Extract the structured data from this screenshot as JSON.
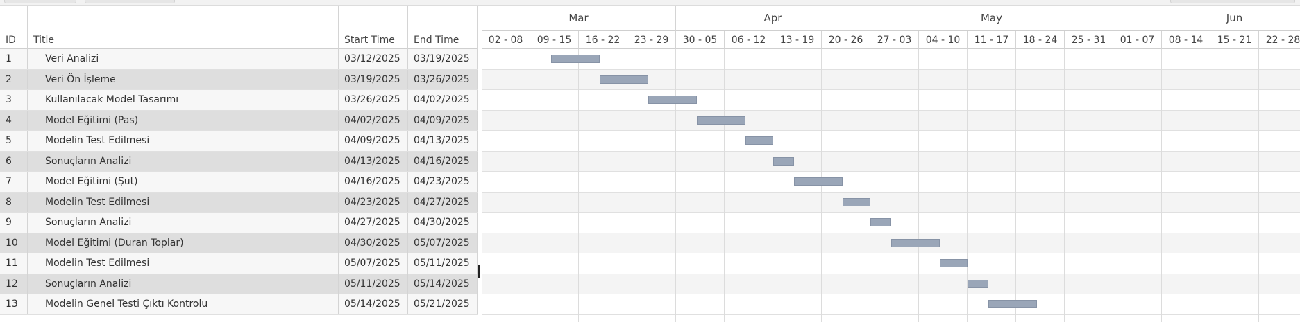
{
  "grid": {
    "columns": {
      "id": "ID",
      "title": "Title",
      "start": "Start Time",
      "end": "End Time"
    },
    "rows": [
      {
        "id": "1",
        "title": "Veri Analizi",
        "start": "03/12/2025",
        "end": "03/19/2025"
      },
      {
        "id": "2",
        "title": "Veri Ön İşleme",
        "start": "03/19/2025",
        "end": "03/26/2025"
      },
      {
        "id": "3",
        "title": "Kullanılacak Model Tasarımı",
        "start": "03/26/2025",
        "end": "04/02/2025"
      },
      {
        "id": "4",
        "title": "Model Eğitimi (Pas)",
        "start": "04/02/2025",
        "end": "04/09/2025"
      },
      {
        "id": "5",
        "title": "Modelin Test Edilmesi",
        "start": "04/09/2025",
        "end": "04/13/2025"
      },
      {
        "id": "6",
        "title": "Sonuçların Analizi",
        "start": "04/13/2025",
        "end": "04/16/2025"
      },
      {
        "id": "7",
        "title": "Model Eğitimi (Şut)",
        "start": "04/16/2025",
        "end": "04/23/2025"
      },
      {
        "id": "8",
        "title": "Modelin Test Edilmesi",
        "start": "04/23/2025",
        "end": "04/27/2025"
      },
      {
        "id": "9",
        "title": "Sonuçların Analizi",
        "start": "04/27/2025",
        "end": "04/30/2025"
      },
      {
        "id": "10",
        "title": "Model Eğitimi (Duran Toplar)",
        "start": "04/30/2025",
        "end": "05/07/2025"
      },
      {
        "id": "11",
        "title": "Modelin Test Edilmesi",
        "start": "05/07/2025",
        "end": "05/11/2025"
      },
      {
        "id": "12",
        "title": "Sonuçların Analizi",
        "start": "05/11/2025",
        "end": "05/14/2025"
      },
      {
        "id": "13",
        "title": "Modelin Genel Testi Çıktı Kontrolu",
        "start": "05/14/2025",
        "end": "05/21/2025"
      }
    ]
  },
  "timeline": {
    "months": [
      "Mar",
      "Apr",
      "May",
      "Jun"
    ],
    "weeks": [
      "02 - 08",
      "09 - 15",
      "16 - 22",
      "23 - 29",
      "30 - 05",
      "06 - 12",
      "13 - 19",
      "20 - 26",
      "27 - 03",
      "04 - 10",
      "11 - 17",
      "18 - 24",
      "25 - 31",
      "01 - 07",
      "08 - 14",
      "15 - 21",
      "22 - 28"
    ],
    "today": "03/13/2025",
    "bar_color": "#9aa6b8",
    "today_color": "#d9534f"
  }
}
